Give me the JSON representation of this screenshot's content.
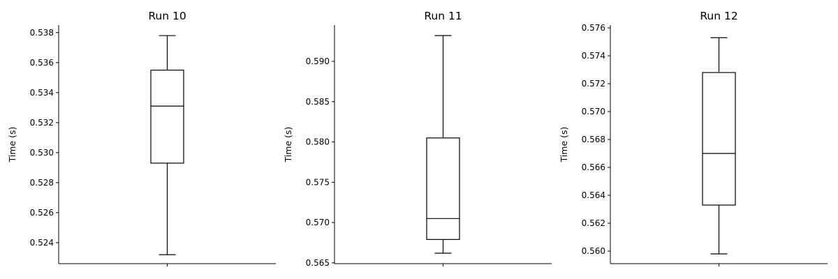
{
  "chart_data": [
    {
      "type": "box",
      "title": "Run 10",
      "ylabel": "Time (s)",
      "xlabel": "",
      "ylim": [
        0.5226,
        0.5385
      ],
      "yticks": [
        0.524,
        0.526,
        0.528,
        0.53,
        0.532,
        0.534,
        0.536,
        0.538
      ],
      "ytick_labels": [
        "0.524",
        "0.526",
        "0.528",
        "0.530",
        "0.532",
        "0.534",
        "0.536",
        "0.538"
      ],
      "box": {
        "whisker_low": 0.5232,
        "q1": 0.5293,
        "median": 0.5331,
        "q3": 0.5355,
        "whisker_high": 0.5378
      }
    },
    {
      "type": "box",
      "title": "Run 11",
      "ylabel": "Time (s)",
      "xlabel": "",
      "ylim": [
        0.5649,
        0.5945
      ],
      "yticks": [
        0.565,
        0.57,
        0.575,
        0.58,
        0.585,
        0.59
      ],
      "ytick_labels": [
        "0.565",
        "0.570",
        "0.575",
        "0.580",
        "0.585",
        "0.590"
      ],
      "box": {
        "whisker_low": 0.5662,
        "q1": 0.5679,
        "median": 0.5705,
        "q3": 0.5805,
        "whisker_high": 0.5932
      }
    },
    {
      "type": "box",
      "title": "Run 12",
      "ylabel": "Time (s)",
      "xlabel": "",
      "ylim": [
        0.5591,
        0.5762
      ],
      "yticks": [
        0.56,
        0.562,
        0.564,
        0.566,
        0.568,
        0.57,
        0.572,
        0.574,
        0.576
      ],
      "ytick_labels": [
        "0.560",
        "0.562",
        "0.564",
        "0.566",
        "0.568",
        "0.570",
        "0.572",
        "0.574",
        "0.576"
      ],
      "box": {
        "whisker_low": 0.5598,
        "q1": 0.5633,
        "median": 0.567,
        "q3": 0.5728,
        "whisker_high": 0.5753
      }
    }
  ]
}
